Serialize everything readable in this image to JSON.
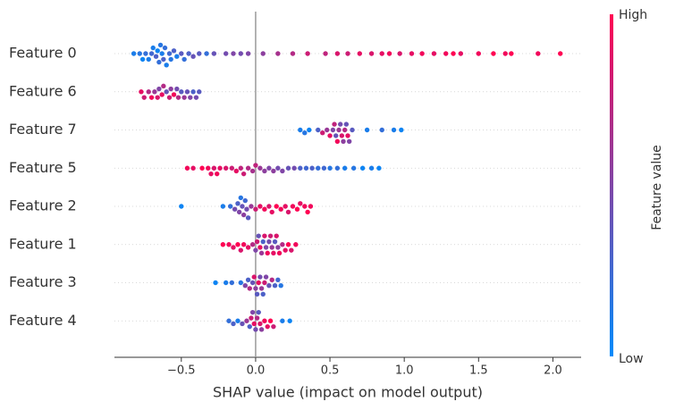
{
  "chart_data": {
    "type": "beeswarm",
    "xlabel": "SHAP value (impact on model output)",
    "categories": [
      "Feature 0",
      "Feature 6",
      "Feature 7",
      "Feature 5",
      "Feature 2",
      "Feature 1",
      "Feature 3",
      "Feature 4"
    ],
    "rows": [
      {
        "values": [
          -0.82,
          -0.78,
          -0.76,
          -0.74,
          -0.72,
          -0.7,
          -0.69,
          -0.67,
          -0.66,
          -0.65,
          -0.64,
          -0.63,
          -0.62,
          -0.61,
          -0.6,
          -0.58,
          -0.57,
          -0.55,
          -0.53,
          -0.5,
          -0.48,
          -0.45,
          -0.42,
          -0.38,
          -0.33,
          -0.28,
          -0.2,
          -0.15,
          -0.1,
          -0.05,
          0.05,
          0.15,
          0.25,
          0.35,
          0.47,
          0.55,
          0.62,
          0.7,
          0.78,
          0.85,
          0.9,
          0.97,
          1.05,
          1.12,
          1.2,
          1.28,
          1.33,
          1.38,
          1.5,
          1.6,
          1.68,
          1.72,
          1.9,
          2.05
        ],
        "feature_values": [
          0.1,
          0.15,
          0.05,
          0.2,
          0.1,
          0.25,
          0.1,
          0.3,
          0.05,
          0.2,
          0.15,
          0.1,
          0.3,
          0.2,
          0.1,
          0.25,
          0.15,
          0.3,
          0.1,
          0.35,
          0.2,
          0.3,
          0.4,
          0.35,
          0.2,
          0.4,
          0.45,
          0.5,
          0.45,
          0.5,
          0.55,
          0.65,
          0.7,
          0.8,
          0.75,
          0.85,
          0.8,
          0.9,
          0.85,
          0.9,
          0.95,
          0.85,
          0.9,
          0.95,
          0.9,
          0.95,
          1,
          0.9,
          0.95,
          1,
          0.95,
          1,
          0.95,
          1
        ]
      },
      {
        "values": [
          -0.77,
          -0.75,
          -0.72,
          -0.7,
          -0.68,
          -0.66,
          -0.65,
          -0.63,
          -0.62,
          -0.6,
          -0.58,
          -0.57,
          -0.55,
          -0.53,
          -0.52,
          -0.5,
          -0.48,
          -0.46,
          -0.44,
          -0.42,
          -0.4,
          -0.38
        ],
        "feature_values": [
          0.9,
          0.8,
          0.7,
          0.95,
          0.6,
          0.85,
          0.5,
          0.9,
          0.7,
          0.4,
          0.8,
          0.55,
          0.95,
          0.45,
          0.7,
          0.35,
          0.6,
          0.4,
          0.5,
          0.3,
          0.45,
          0.35
        ]
      },
      {
        "values": [
          0.3,
          0.33,
          0.36,
          0.42,
          0.45,
          0.48,
          0.5,
          0.52,
          0.53,
          0.54,
          0.55,
          0.56,
          0.57,
          0.58,
          0.59,
          0.6,
          0.61,
          0.62,
          0.63,
          0.65,
          0.75,
          0.85,
          0.93,
          0.98
        ],
        "feature_values": [
          0.1,
          0.15,
          0.05,
          0.3,
          0.8,
          0.6,
          0.9,
          0.5,
          0.75,
          0.4,
          0.95,
          0.6,
          0.45,
          0.85,
          0.55,
          0.7,
          0.4,
          0.9,
          0.5,
          0.35,
          0.1,
          0.2,
          0.1,
          0.05
        ]
      },
      {
        "values": [
          -0.46,
          -0.42,
          -0.36,
          -0.32,
          -0.3,
          -0.28,
          -0.26,
          -0.24,
          -0.2,
          -0.16,
          -0.13,
          -0.1,
          -0.08,
          -0.05,
          -0.02,
          0.0,
          0.03,
          0.06,
          0.09,
          0.12,
          0.15,
          0.18,
          0.22,
          0.26,
          0.3,
          0.34,
          0.38,
          0.42,
          0.46,
          0.5,
          0.55,
          0.6,
          0.66,
          0.72,
          0.78,
          0.83
        ],
        "feature_values": [
          0.95,
          0.9,
          1,
          0.95,
          0.9,
          0.85,
          0.95,
          0.9,
          0.85,
          0.8,
          0.9,
          0.75,
          0.8,
          0.7,
          0.65,
          0.75,
          0.6,
          0.55,
          0.5,
          0.55,
          0.45,
          0.5,
          0.4,
          0.45,
          0.3,
          0.25,
          0.3,
          0.2,
          0.25,
          0.15,
          0.2,
          0.1,
          0.15,
          0.05,
          0.1,
          0.05
        ]
      },
      {
        "values": [
          -0.5,
          -0.22,
          -0.17,
          -0.14,
          -0.12,
          -0.11,
          -0.1,
          -0.09,
          -0.08,
          -0.07,
          -0.06,
          -0.05,
          -0.03,
          0.0,
          0.03,
          0.06,
          0.09,
          0.11,
          0.14,
          0.17,
          0.2,
          0.22,
          0.25,
          0.28,
          0.3,
          0.33,
          0.35,
          0.37
        ],
        "feature_values": [
          0.05,
          0.1,
          0.2,
          0.45,
          0.3,
          0.5,
          0.15,
          0.4,
          0.55,
          0.25,
          0.45,
          0.35,
          0.6,
          0.8,
          0.9,
          0.95,
          0.85,
          0.9,
          1,
          0.95,
          0.9,
          0.85,
          0.95,
          1,
          0.9,
          0.95,
          1,
          0.95
        ]
      },
      {
        "values": [
          -0.22,
          -0.18,
          -0.15,
          -0.12,
          -0.1,
          -0.08,
          -0.05,
          -0.02,
          0.0,
          0.01,
          0.02,
          0.03,
          0.04,
          0.05,
          0.06,
          0.07,
          0.08,
          0.09,
          0.1,
          0.11,
          0.12,
          0.13,
          0.14,
          0.15,
          0.16,
          0.18,
          0.2,
          0.22,
          0.24,
          0.27
        ],
        "feature_values": [
          1,
          0.95,
          0.9,
          1,
          0.85,
          0.95,
          0.9,
          0.7,
          0.5,
          0.8,
          0.4,
          0.9,
          0.6,
          0.3,
          0.85,
          0.5,
          0.95,
          0.45,
          0.8,
          0.6,
          0.9,
          0.35,
          0.85,
          0.55,
          0.95,
          0.7,
          0.9,
          1,
          0.85,
          0.95
        ]
      },
      {
        "values": [
          -0.27,
          -0.2,
          -0.16,
          -0.1,
          -0.07,
          -0.05,
          -0.04,
          -0.02,
          -0.01,
          0.0,
          0.01,
          0.02,
          0.03,
          0.04,
          0.05,
          0.06,
          0.07,
          0.09,
          0.11,
          0.13,
          0.15,
          0.17
        ],
        "feature_values": [
          0.05,
          0.1,
          0.2,
          0.15,
          0.5,
          0.3,
          0.7,
          0.4,
          0.85,
          0.55,
          0.35,
          0.9,
          0.45,
          0.6,
          0.3,
          0.8,
          0.5,
          0.4,
          0.7,
          0.3,
          0.25,
          0.15
        ]
      },
      {
        "values": [
          -0.18,
          -0.15,
          -0.12,
          -0.09,
          -0.06,
          -0.04,
          -0.03,
          -0.02,
          -0.01,
          0.0,
          0.01,
          0.02,
          0.03,
          0.04,
          0.06,
          0.08,
          0.1,
          0.12,
          0.18,
          0.23
        ],
        "feature_values": [
          0.2,
          0.3,
          0.1,
          0.4,
          0.6,
          0.3,
          0.8,
          0.5,
          0.9,
          0.45,
          0.7,
          0.35,
          0.85,
          0.55,
          0.95,
          0.9,
          1,
          0.8,
          0.1,
          0.05
        ]
      }
    ],
    "xlim": [
      -0.95,
      2.19
    ],
    "xticks": [
      {
        "value": -0.5,
        "label": "−0.5"
      },
      {
        "value": 0,
        "label": "0.0"
      },
      0.5,
      {
        "value": 1,
        "label": "1.0"
      },
      1.5,
      {
        "value": 2,
        "label": "2.0"
      }
    ],
    "zero_line": 0,
    "color_low": "#008bfb",
    "color_high": "#ff0052",
    "colorbar": {
      "label": "Feature value",
      "high": "High",
      "low": "Low"
    }
  }
}
